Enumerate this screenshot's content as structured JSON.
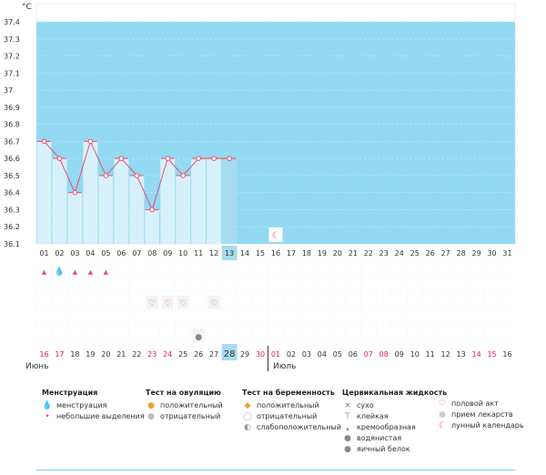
{
  "chart_data": {
    "type": "line",
    "unit_label": "°C",
    "ylim": [
      36.1,
      37.4
    ],
    "y_ticks": [
      "36.1",
      "36.2",
      "36.3",
      "36.4",
      "36.5",
      "36.6",
      "36.7",
      "36.8",
      "36.9",
      "37",
      "37.1",
      "37.2",
      "37.3",
      "37.4"
    ],
    "x_top": [
      "01",
      "02",
      "03",
      "04",
      "05",
      "06",
      "07",
      "08",
      "09",
      "10",
      "11",
      "12",
      "13",
      "14",
      "15",
      "16",
      "17",
      "18",
      "19",
      "20",
      "21",
      "22",
      "23",
      "24",
      "25",
      "26",
      "27",
      "28",
      "29",
      "30",
      "31"
    ],
    "x_bottom": [
      "16",
      "17",
      "18",
      "19",
      "20",
      "21",
      "22",
      "23",
      "24",
      "25",
      "26",
      "27",
      "28",
      "29",
      "30",
      "01",
      "02",
      "03",
      "04",
      "05",
      "06",
      "07",
      "08",
      "09",
      "10",
      "11",
      "12",
      "13",
      "14",
      "15",
      "16"
    ],
    "x_bottom_red": [
      true,
      true,
      false,
      false,
      false,
      false,
      false,
      true,
      true,
      false,
      false,
      false,
      false,
      false,
      true,
      true,
      false,
      false,
      false,
      false,
      false,
      true,
      true,
      false,
      false,
      false,
      false,
      false,
      true,
      true,
      false
    ],
    "series": [
      {
        "x": [
          1,
          2,
          3,
          4,
          5,
          6,
          7,
          8,
          9,
          10,
          11,
          12,
          13
        ],
        "values": [
          36.7,
          36.6,
          36.4,
          36.7,
          36.5,
          36.6,
          36.5,
          36.3,
          36.6,
          36.5,
          36.6,
          36.6,
          36.6
        ]
      }
    ],
    "today_index": 13,
    "moon_day": 16,
    "events": {
      "menstruation_heavy": [
        2
      ],
      "menstruation_light": [
        1,
        3,
        4,
        5
      ],
      "intercourse": [
        8,
        9,
        10,
        12
      ],
      "egg_white": [
        11
      ]
    }
  },
  "months": {
    "left": "Июнь",
    "right": "Июль"
  },
  "legend": {
    "menstruation": {
      "title": "Менструация",
      "items": [
        "менструация",
        "небольшие выделения"
      ]
    },
    "ovulation": {
      "title": "Тест на овуляцию",
      "items": [
        "положительный",
        "отрицательный"
      ]
    },
    "pregnancy": {
      "title": "Тест на беременность",
      "items": [
        "положительный",
        "отрицательный",
        "слабоположительный"
      ]
    },
    "cervical": {
      "title": "Цервикальная жидкость",
      "items": [
        "сухо",
        "клейкая",
        "кремообразная",
        "водянистая",
        "яичный белок"
      ]
    },
    "other": {
      "items": [
        "половой акт",
        "прием лекарств",
        "лунный календарь"
      ]
    }
  },
  "colors": {
    "area": "#93d9f2",
    "line": "#e8506e",
    "bar": "#d7f1fc",
    "today": "#a6dcef",
    "red_text": "#e0204a"
  }
}
